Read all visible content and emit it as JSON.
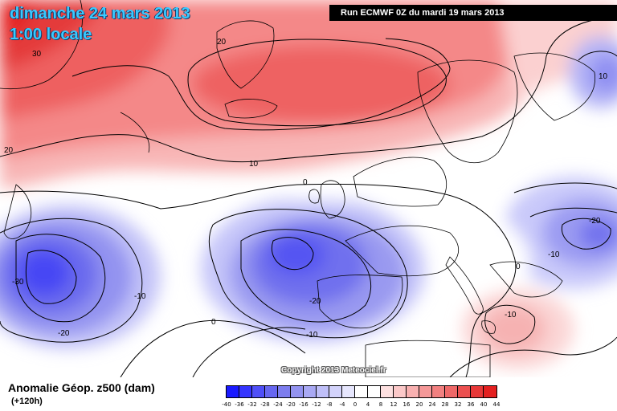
{
  "header": {
    "date": "dimanche 24 mars 2013",
    "local_hour": "1:00 locale",
    "run": "Run ECMWF 0Z du mardi 19 mars 2013"
  },
  "copyright": "Copyright 2013 Meteociel.fr",
  "legend": {
    "title": "Anomalie Géop. z500 (dam)",
    "subtitle": "(+120h)",
    "ticks": [
      "-40",
      "-36",
      "-32",
      "-28",
      "-24",
      "-20",
      "-16",
      "-12",
      "-8",
      "-4",
      "0",
      "4",
      "8",
      "12",
      "16",
      "20",
      "24",
      "28",
      "32",
      "36",
      "40",
      "44"
    ],
    "colors": [
      "#1a1aff",
      "#3535ff",
      "#4f4ff8",
      "#6767f0",
      "#7d7dee",
      "#9393f0",
      "#a9a9f4",
      "#bfbff8",
      "#d3d3fb",
      "#e6e6fd",
      "#ffffff",
      "#ffffff",
      "#fde0e0",
      "#fbc8c8",
      "#f8b0b0",
      "#f59898",
      "#f28080",
      "#ef6868",
      "#ec5050",
      "#e83838",
      "#e42020"
    ]
  },
  "contour_labels": [
    "30",
    "20",
    "20",
    "10",
    "10",
    "0",
    "-10",
    "-20",
    "-30",
    "-10",
    "-20",
    "0",
    "-10",
    "-20",
    "0",
    "-10",
    "-10",
    "0"
  ],
  "icons": {
    "map": "weather-map"
  }
}
